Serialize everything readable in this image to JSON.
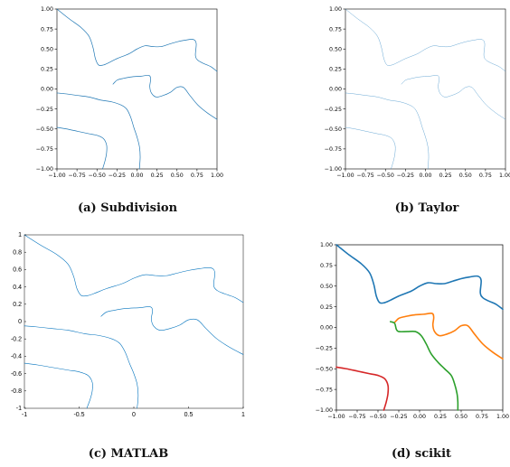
{
  "chart_data": [
    {
      "type": "line",
      "caption": "(a) Subdivision",
      "style": "matplotlib",
      "x_ticks": [
        "−1.00",
        "−0.75",
        "−0.50",
        "−0.25",
        "0.00",
        "0.25",
        "0.50",
        "0.75",
        "1.00"
      ],
      "y_ticks": [
        "−1.00",
        "−0.75",
        "−0.50",
        "−0.25",
        "0.00",
        "0.25",
        "0.50",
        "0.75",
        "1.00"
      ],
      "xlim": [
        -1,
        1
      ],
      "ylim": [
        -1,
        1
      ],
      "line_width": 0.7,
      "curve_colors": [
        "#1f77b4",
        "#1f77b4",
        "#1f77b4",
        "#1f77b4"
      ]
    },
    {
      "type": "line",
      "caption": "(b) Taylor",
      "style": "matplotlib",
      "x_ticks": [
        "−1.00",
        "−0.75",
        "−0.50",
        "−0.25",
        "0.00",
        "0.25",
        "0.50",
        "0.75",
        "1.00"
      ],
      "y_ticks": [
        "−1.00",
        "−0.75",
        "−0.50",
        "−0.25",
        "0.00",
        "0.25",
        "0.50",
        "0.75",
        "1.00"
      ],
      "xlim": [
        -1,
        1
      ],
      "ylim": [
        -1,
        1
      ],
      "line_width": 0.4,
      "curve_colors": [
        "#3f8fc8",
        "#3f8fc8",
        "#3f8fc8",
        "#3f8fc8"
      ]
    },
    {
      "type": "line",
      "caption": "(c) MATLAB",
      "style": "matlab",
      "x_ticks": [
        "-1",
        "-0.5",
        "0",
        "0.5",
        "1"
      ],
      "y_ticks": [
        "-1",
        "-0.8",
        "-0.6",
        "-0.4",
        "-0.2",
        "0",
        "0.2",
        "0.4",
        "0.6",
        "0.8",
        "1"
      ],
      "xlim": [
        -1,
        1
      ],
      "ylim": [
        -1,
        1
      ],
      "line_width": 0.6,
      "curve_colors": [
        "#0072bd",
        "#0072bd",
        "#0072bd",
        "#0072bd"
      ]
    },
    {
      "type": "line",
      "caption": "(d) scikit",
      "style": "matplotlib",
      "x_ticks": [
        "−1.00",
        "−0.75",
        "−0.50",
        "−0.25",
        "0.00",
        "0.25",
        "0.50",
        "0.75",
        "1.00"
      ],
      "y_ticks": [
        "−1.00",
        "−0.75",
        "−0.50",
        "−0.25",
        "0.00",
        "0.25",
        "0.50",
        "0.75",
        "1.00"
      ],
      "xlim": [
        -1,
        1
      ],
      "ylim": [
        -1,
        1
      ],
      "line_width": 1.6,
      "curve_colors": [
        "#1f77b4",
        "#ff7f0e",
        "#2ca02c",
        "#d62728"
      ]
    }
  ],
  "curves": [
    [
      [
        -1.0,
        1.0
      ],
      [
        -0.85,
        0.88
      ],
      [
        -0.7,
        0.77
      ],
      [
        -0.6,
        0.66
      ],
      [
        -0.55,
        0.52
      ],
      [
        -0.52,
        0.38
      ],
      [
        -0.48,
        0.3
      ],
      [
        -0.42,
        0.3
      ],
      [
        -0.35,
        0.33
      ],
      [
        -0.25,
        0.38
      ],
      [
        -0.1,
        0.44
      ],
      [
        0.0,
        0.5
      ],
      [
        0.1,
        0.54
      ],
      [
        0.2,
        0.53
      ],
      [
        0.3,
        0.53
      ],
      [
        0.4,
        0.56
      ],
      [
        0.5,
        0.59
      ],
      [
        0.6,
        0.61
      ],
      [
        0.7,
        0.62
      ],
      [
        0.74,
        0.57
      ],
      [
        0.73,
        0.42
      ],
      [
        0.76,
        0.36
      ],
      [
        0.83,
        0.32
      ],
      [
        0.92,
        0.28
      ],
      [
        1.0,
        0.22
      ]
    ],
    [
      [
        -0.3,
        0.06
      ],
      [
        -0.25,
        0.11
      ],
      [
        -0.18,
        0.13
      ],
      [
        -0.08,
        0.15
      ],
      [
        0.05,
        0.16
      ],
      [
        0.15,
        0.17
      ],
      [
        0.17,
        0.12
      ],
      [
        0.16,
        0.03
      ],
      [
        0.18,
        -0.05
      ],
      [
        0.24,
        -0.1
      ],
      [
        0.33,
        -0.08
      ],
      [
        0.42,
        -0.04
      ],
      [
        0.5,
        0.02
      ],
      [
        0.58,
        0.02
      ],
      [
        0.66,
        -0.08
      ],
      [
        0.76,
        -0.2
      ],
      [
        0.88,
        -0.3
      ],
      [
        1.0,
        -0.38
      ]
    ],
    [
      [
        -1.0,
        -0.05
      ],
      [
        -0.9,
        -0.06
      ],
      [
        -0.75,
        -0.08
      ],
      [
        -0.6,
        -0.1
      ],
      [
        -0.45,
        -0.14
      ],
      [
        -0.32,
        -0.16
      ],
      [
        -0.2,
        -0.2
      ],
      [
        -0.13,
        -0.25
      ],
      [
        -0.08,
        -0.35
      ],
      [
        -0.04,
        -0.48
      ],
      [
        0.0,
        -0.6
      ],
      [
        0.03,
        -0.72
      ],
      [
        0.04,
        -0.85
      ],
      [
        0.03,
        -1.0
      ]
    ],
    [
      [
        -1.0,
        -0.48
      ],
      [
        -0.88,
        -0.5
      ],
      [
        -0.74,
        -0.53
      ],
      [
        -0.6,
        -0.56
      ],
      [
        -0.5,
        -0.58
      ],
      [
        -0.42,
        -0.62
      ],
      [
        -0.38,
        -0.7
      ],
      [
        -0.38,
        -0.8
      ],
      [
        -0.4,
        -0.9
      ],
      [
        -0.43,
        -1.0
      ]
    ],
    [
      [
        -0.35,
        0.07
      ],
      [
        -0.3,
        0.05
      ],
      [
        -0.28,
        -0.02
      ],
      [
        -0.25,
        -0.05
      ],
      [
        -0.15,
        -0.05
      ],
      [
        -0.05,
        -0.05
      ],
      [
        0.02,
        -0.1
      ],
      [
        0.08,
        -0.2
      ],
      [
        0.14,
        -0.32
      ],
      [
        0.22,
        -0.42
      ],
      [
        0.3,
        -0.5
      ],
      [
        0.38,
        -0.58
      ],
      [
        0.42,
        -0.68
      ],
      [
        0.45,
        -0.8
      ],
      [
        0.46,
        -0.9
      ],
      [
        0.46,
        -1.0
      ]
    ]
  ],
  "curve_membership": [
    [
      0,
      1,
      2,
      3
    ],
    [
      0,
      1,
      2,
      3
    ],
    [
      0,
      1,
      2,
      3
    ],
    [
      0,
      1,
      2,
      3
    ]
  ],
  "curves_by_panel": [
    [
      0,
      1,
      2,
      3
    ],
    [
      0,
      1,
      2,
      3
    ],
    [
      0,
      1,
      2,
      3
    ],
    [
      0,
      1,
      4,
      3
    ]
  ]
}
